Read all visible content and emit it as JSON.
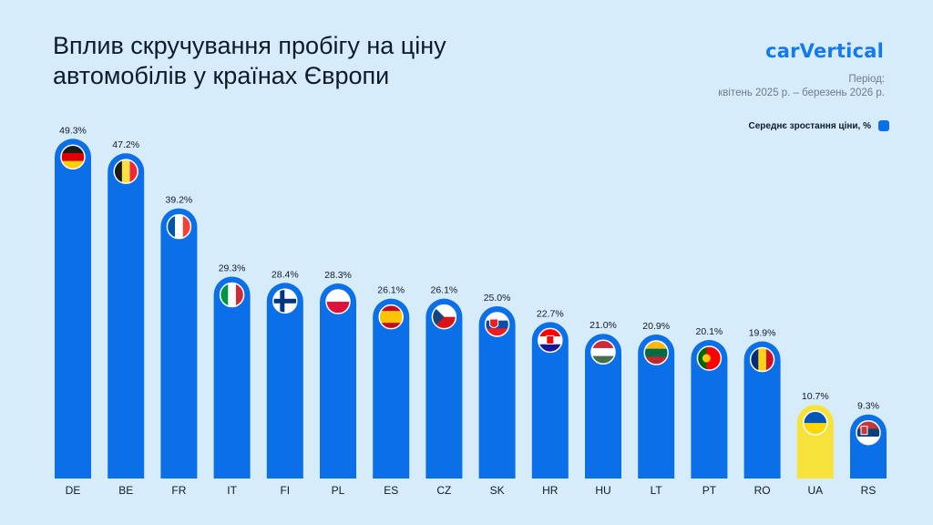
{
  "header": {
    "title": "Вплив скручування пробігу на ціну автомобілів у країнах Європи",
    "brand": "carVertical",
    "period_label": "Період:",
    "period_value": "квітень 2025 р. – березень 2026 р."
  },
  "legend": {
    "label": "Середнє зростання ціни, %"
  },
  "colors": {
    "bar": "#0b6fe8",
    "bar_highlight": "#f7e23a",
    "background": "#d7ecfb"
  },
  "chart_data": {
    "type": "bar",
    "categories": [
      "DE",
      "BE",
      "FR",
      "IT",
      "FI",
      "PL",
      "ES",
      "CZ",
      "SK",
      "HR",
      "HU",
      "LT",
      "PT",
      "RO",
      "UA",
      "RS"
    ],
    "series": [
      {
        "name": "Середнє зростання ціни, %",
        "values": [
          49.3,
          47.2,
          39.2,
          29.3,
          28.4,
          28.3,
          26.1,
          26.1,
          25.0,
          22.7,
          21.0,
          20.9,
          20.1,
          19.9,
          10.7,
          9.3
        ]
      }
    ],
    "value_labels": [
      "49.3%",
      "47.2%",
      "39.2%",
      "29.3%",
      "28.4%",
      "28.3%",
      "26.1%",
      "26.1%",
      "25.0%",
      "22.7%",
      "21.0%",
      "20.9%",
      "20.1%",
      "19.9%",
      "10.7%",
      "9.3%"
    ],
    "flags": [
      "germany-flag-icon",
      "belgium-flag-icon",
      "france-flag-icon",
      "italy-flag-icon",
      "finland-flag-icon",
      "poland-flag-icon",
      "spain-flag-icon",
      "czechia-flag-icon",
      "slovakia-flag-icon",
      "croatia-flag-icon",
      "hungary-flag-icon",
      "lithuania-flag-icon",
      "portugal-flag-icon",
      "romania-flag-icon",
      "ukraine-flag-icon",
      "serbia-flag-icon"
    ],
    "highlight": "UA",
    "ylim": [
      0,
      50
    ],
    "grid": false,
    "legend_position": "top-right"
  }
}
